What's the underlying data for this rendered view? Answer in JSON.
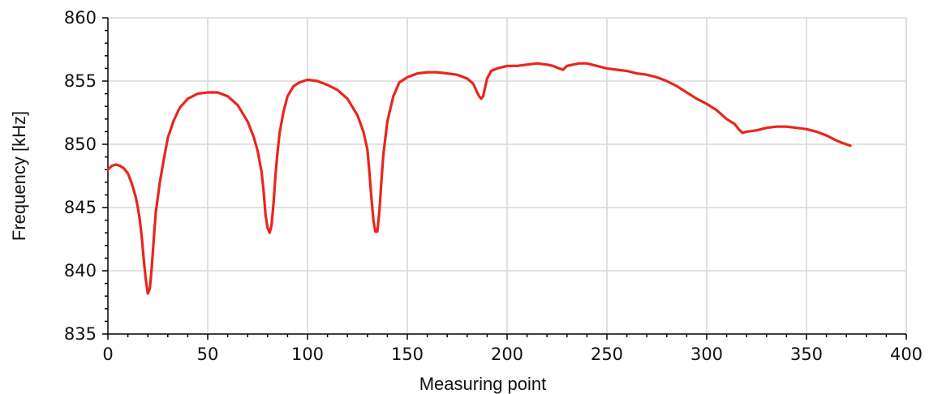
{
  "chart_data": {
    "type": "line",
    "title": "",
    "xlabel": "Measuring point",
    "ylabel": "Frequency [kHz]",
    "xlim": [
      0,
      400
    ],
    "ylim": [
      835,
      860
    ],
    "xticks": [
      0,
      50,
      100,
      150,
      200,
      250,
      300,
      350,
      400
    ],
    "yticks": [
      835,
      840,
      845,
      850,
      855,
      860
    ],
    "grid": true,
    "legend": "none",
    "series": [
      {
        "color": "#e8261c",
        "x": [
          0,
          2,
          4,
          6,
          8,
          10,
          12,
          14,
          15,
          16,
          17,
          18,
          19,
          20,
          21,
          22,
          23,
          24,
          26,
          28,
          30,
          33,
          36,
          40,
          45,
          50,
          55,
          60,
          65,
          70,
          73,
          75,
          77,
          78,
          79,
          80,
          81,
          82,
          83,
          84,
          85,
          86,
          88,
          90,
          93,
          96,
          100,
          105,
          110,
          115,
          120,
          125,
          128,
          130,
          131,
          132,
          133,
          134,
          135,
          136,
          137,
          138,
          140,
          143,
          146,
          150,
          155,
          160,
          165,
          170,
          175,
          180,
          183,
          185,
          186,
          187,
          188,
          189,
          190,
          192,
          195,
          200,
          205,
          210,
          215,
          220,
          223,
          226,
          228,
          230,
          233,
          236,
          240,
          245,
          250,
          255,
          260,
          265,
          270,
          275,
          280,
          285,
          290,
          295,
          300,
          305,
          310,
          314,
          316,
          318,
          320,
          325,
          330,
          335,
          340,
          345,
          350,
          355,
          360,
          365,
          368,
          370,
          372
        ],
        "y": [
          848.0,
          848.3,
          848.4,
          848.3,
          848.1,
          847.7,
          846.9,
          845.8,
          845.0,
          844.0,
          842.6,
          840.8,
          839.3,
          838.2,
          838.6,
          840.3,
          842.6,
          844.6,
          847.0,
          848.8,
          850.5,
          851.9,
          852.9,
          853.6,
          854.0,
          854.1,
          854.1,
          853.8,
          853.1,
          851.8,
          850.6,
          849.5,
          847.8,
          846.3,
          844.4,
          843.4,
          843.0,
          843.6,
          845.4,
          847.6,
          849.4,
          850.9,
          852.6,
          853.8,
          854.6,
          854.9,
          855.1,
          855.0,
          854.7,
          854.3,
          853.6,
          852.3,
          851.0,
          849.6,
          847.8,
          845.8,
          844.0,
          843.1,
          843.1,
          844.7,
          847.0,
          849.2,
          851.8,
          853.8,
          854.9,
          855.3,
          855.6,
          855.7,
          855.7,
          855.6,
          855.5,
          855.2,
          854.8,
          854.1,
          853.8,
          853.6,
          853.8,
          854.5,
          855.2,
          855.8,
          856.0,
          856.2,
          856.2,
          856.3,
          856.4,
          856.3,
          856.2,
          856.0,
          855.9,
          856.2,
          856.3,
          856.4,
          856.4,
          856.2,
          856.0,
          855.9,
          855.8,
          855.6,
          855.5,
          855.3,
          855.0,
          854.6,
          854.1,
          853.6,
          853.2,
          852.7,
          852.0,
          851.6,
          851.2,
          850.9,
          851.0,
          851.1,
          851.3,
          851.4,
          851.4,
          851.3,
          851.2,
          851.0,
          850.7,
          850.3,
          850.1,
          850.0,
          849.9
        ]
      }
    ]
  }
}
